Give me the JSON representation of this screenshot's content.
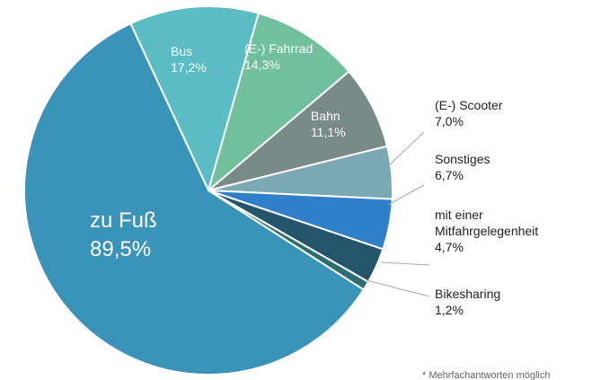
{
  "chart_data": {
    "type": "pie",
    "categories": [
      "zu Fuß",
      "Bus",
      "(E-) Fahrrad",
      "Bahn",
      "(E-) Scooter",
      "Sonstiges",
      "mit einer Mitfahrgelegenheit",
      "Bikesharing"
    ],
    "values": [
      89.5,
      17.2,
      14.3,
      11.1,
      7.0,
      6.7,
      4.7,
      1.2
    ],
    "value_labels": [
      "89,5%",
      "17,2%",
      "14,3%",
      "11,1%",
      "7,0%",
      "6,7%",
      "4,7%",
      "1,2%"
    ],
    "colors": [
      "#3a93b8",
      "#5bbcc4",
      "#70bf9d",
      "#798b87",
      "#7ba9b3",
      "#2f80c8",
      "#23566b",
      "#2e6e72"
    ],
    "footnote": "* Mehrfachantworten möglich"
  }
}
